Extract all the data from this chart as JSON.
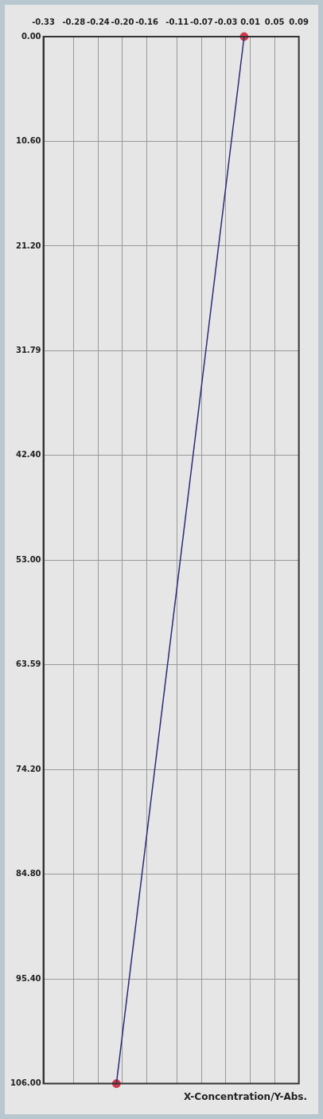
{
  "chart_data": {
    "type": "line",
    "title": "X-Concentration/Y-Abs.",
    "series": [
      {
        "color": "#2b2b7a",
        "values": [
          0,
          106
        ]
      },
      {
        "type": "scatter",
        "color": "#d03a4a",
        "values": [
          0,
          106
        ],
        "marker": "circle"
      }
    ],
    "x": [
      0.0,
      -0.21
    ],
    "xlim": [
      -0.33,
      0.09
    ],
    "xticks": [
      -0.33,
      -0.28,
      -0.24,
      {
        "value": -0.2,
        "label": "-0.20"
      },
      -0.16,
      -0.11,
      -0.07,
      -0.03,
      0.01,
      0.05,
      0.09
    ],
    "ylim": [
      106,
      0
    ],
    "yticks": [
      {
        "value": 0,
        "label": "0.00"
      },
      {
        "value": 10.6,
        "label": "10.60"
      },
      {
        "value": 21.2,
        "label": "21.20"
      },
      31.79,
      {
        "value": 42.4,
        "label": "42.40"
      },
      {
        "value": 53,
        "label": "53.00"
      },
      63.59,
      {
        "value": 74.2,
        "label": "74.20"
      },
      {
        "value": 84.8,
        "label": "84.80"
      },
      {
        "value": 95.4,
        "label": "95.40"
      },
      {
        "value": 106,
        "label": "106.00"
      }
    ],
    "grid": true
  }
}
